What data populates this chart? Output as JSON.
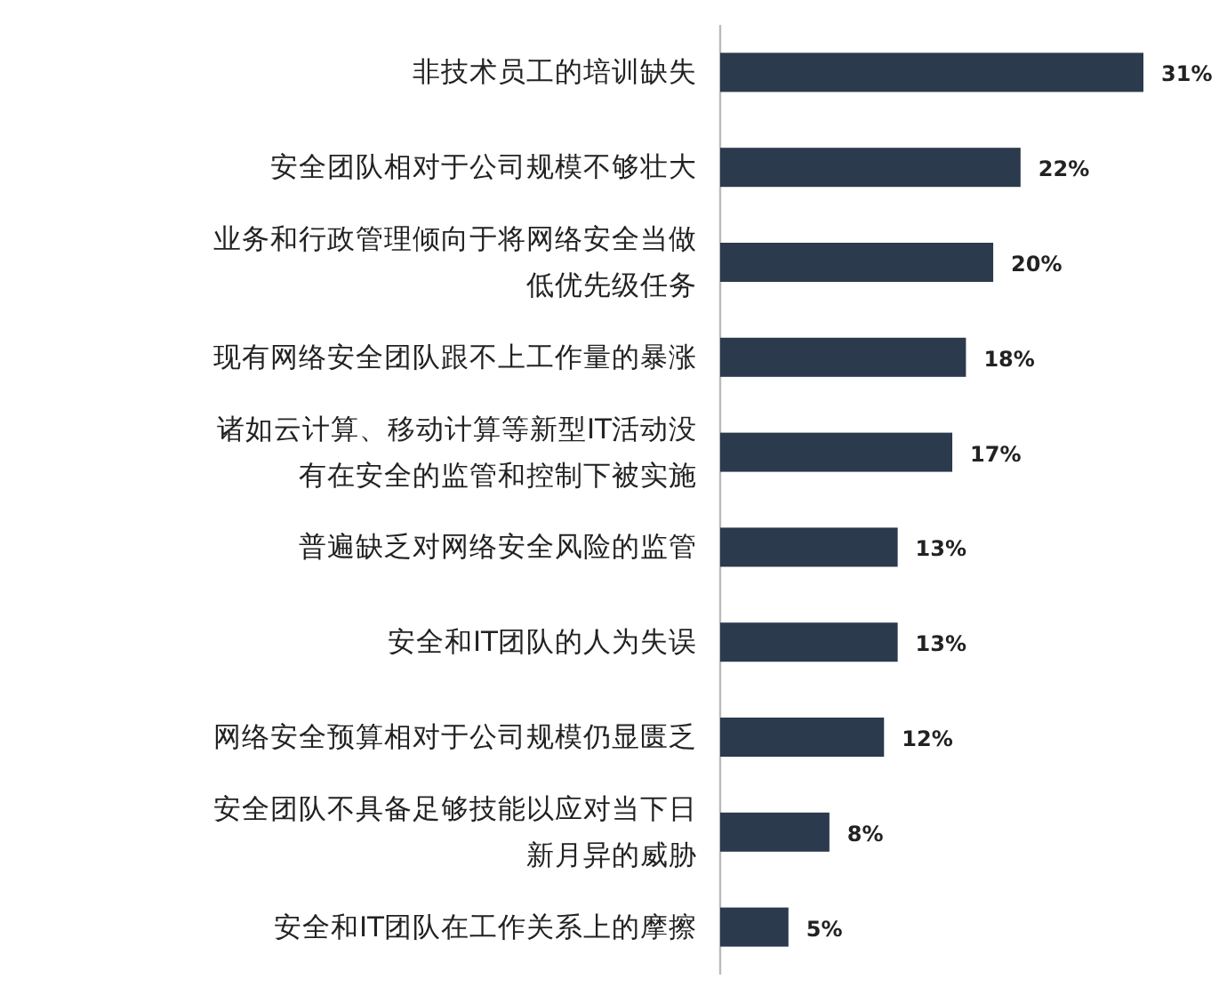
{
  "chart_data": {
    "type": "bar",
    "orientation": "horizontal",
    "categories": [
      "非技术员工的培训缺失",
      "安全团队相对于公司规模不够壮大",
      "业务和行政管理倾向于将网络安全当做低优先级任务",
      "现有网络安全团队跟不上工作量的暴涨",
      "诸如云计算、移动计算等新型IT活动没有在安全的监管和控制下被实施",
      "普遍缺乏对网络安全风险的监管",
      "安全和IT团队的人为失误",
      "网络安全预算相对于公司规模仍显匮乏",
      "安全团队不具备足够技能以应对当下日新月异的威胁",
      "安全和IT团队在工作关系上的摩擦"
    ],
    "values": [
      31,
      22,
      20,
      18,
      17,
      13,
      13,
      12,
      8,
      5
    ],
    "value_labels": [
      "31%",
      "22%",
      "20%",
      "18%",
      "17%",
      "13%",
      "13%",
      "12%",
      "8%",
      "5%"
    ],
    "color": "#2b3a4c"
  }
}
